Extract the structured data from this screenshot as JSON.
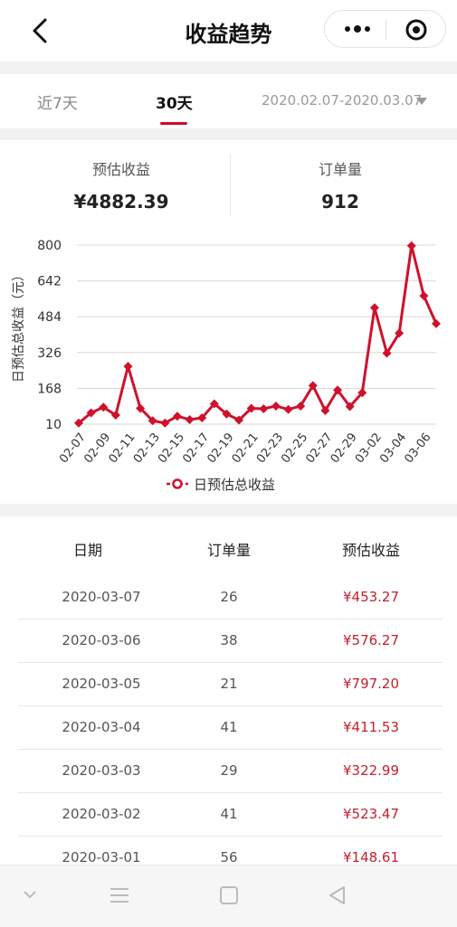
{
  "header": {
    "title": "收益趋势"
  },
  "tabs": {
    "seven_days": "近7天",
    "thirty_days": "30天",
    "date_range": "2020.02.07-2020.03.07"
  },
  "summary": {
    "revenue_label": "预估收益",
    "revenue_value": "¥4882.39",
    "orders_label": "订单量",
    "orders_value": "912"
  },
  "chart_data": {
    "type": "line",
    "ylabel": "日预估总收益（元）",
    "yticks": [
      10,
      168,
      326,
      484,
      642,
      800
    ],
    "ylim": [
      10,
      800
    ],
    "x_tick_labels": [
      "02-07",
      "02-09",
      "02-11",
      "02-13",
      "02-15",
      "02-17",
      "02-19",
      "02-21",
      "02-23",
      "02-25",
      "02-27",
      "02-29",
      "03-02",
      "03-04",
      "03-06"
    ],
    "categories": [
      "02-07",
      "02-08",
      "02-09",
      "02-10",
      "02-11",
      "02-12",
      "02-13",
      "02-14",
      "02-15",
      "02-16",
      "02-17",
      "02-18",
      "02-19",
      "02-20",
      "02-21",
      "02-22",
      "02-23",
      "02-24",
      "02-25",
      "02-26",
      "02-27",
      "02-28",
      "02-29",
      "03-01",
      "03-02",
      "03-03",
      "03-04",
      "03-05",
      "03-06",
      "03-07"
    ],
    "series": [
      {
        "name": "日预估总收益",
        "color": "#d0112b",
        "values": [
          15,
          60,
          85,
          50,
          265,
          80,
          25,
          15,
          45,
          30,
          38,
          100,
          55,
          28,
          80,
          78,
          90,
          75,
          90,
          180,
          70,
          160,
          88,
          148.61,
          523.47,
          322.99,
          411.53,
          797.2,
          576.27,
          453.27
        ]
      }
    ],
    "legend": {
      "position": "bottom",
      "label": "日预估总收益"
    },
    "grid": true
  },
  "table": {
    "headers": [
      "日期",
      "订单量",
      "预估收益"
    ],
    "rows": [
      {
        "date": "2020-03-07",
        "orders": "26",
        "earnings": "¥453.27"
      },
      {
        "date": "2020-03-06",
        "orders": "38",
        "earnings": "¥576.27"
      },
      {
        "date": "2020-03-05",
        "orders": "21",
        "earnings": "¥797.20"
      },
      {
        "date": "2020-03-04",
        "orders": "41",
        "earnings": "¥411.53"
      },
      {
        "date": "2020-03-03",
        "orders": "29",
        "earnings": "¥322.99"
      },
      {
        "date": "2020-03-02",
        "orders": "41",
        "earnings": "¥523.47"
      },
      {
        "date": "2020-03-01",
        "orders": "56",
        "earnings": "¥148.61"
      }
    ]
  },
  "icons": [
    "back-arrow-icon",
    "more-dots-icon",
    "target-circle-icon",
    "dropdown-caret-icon",
    "nav-down-icon",
    "nav-menu-icon",
    "nav-home-icon",
    "nav-back-icon"
  ]
}
